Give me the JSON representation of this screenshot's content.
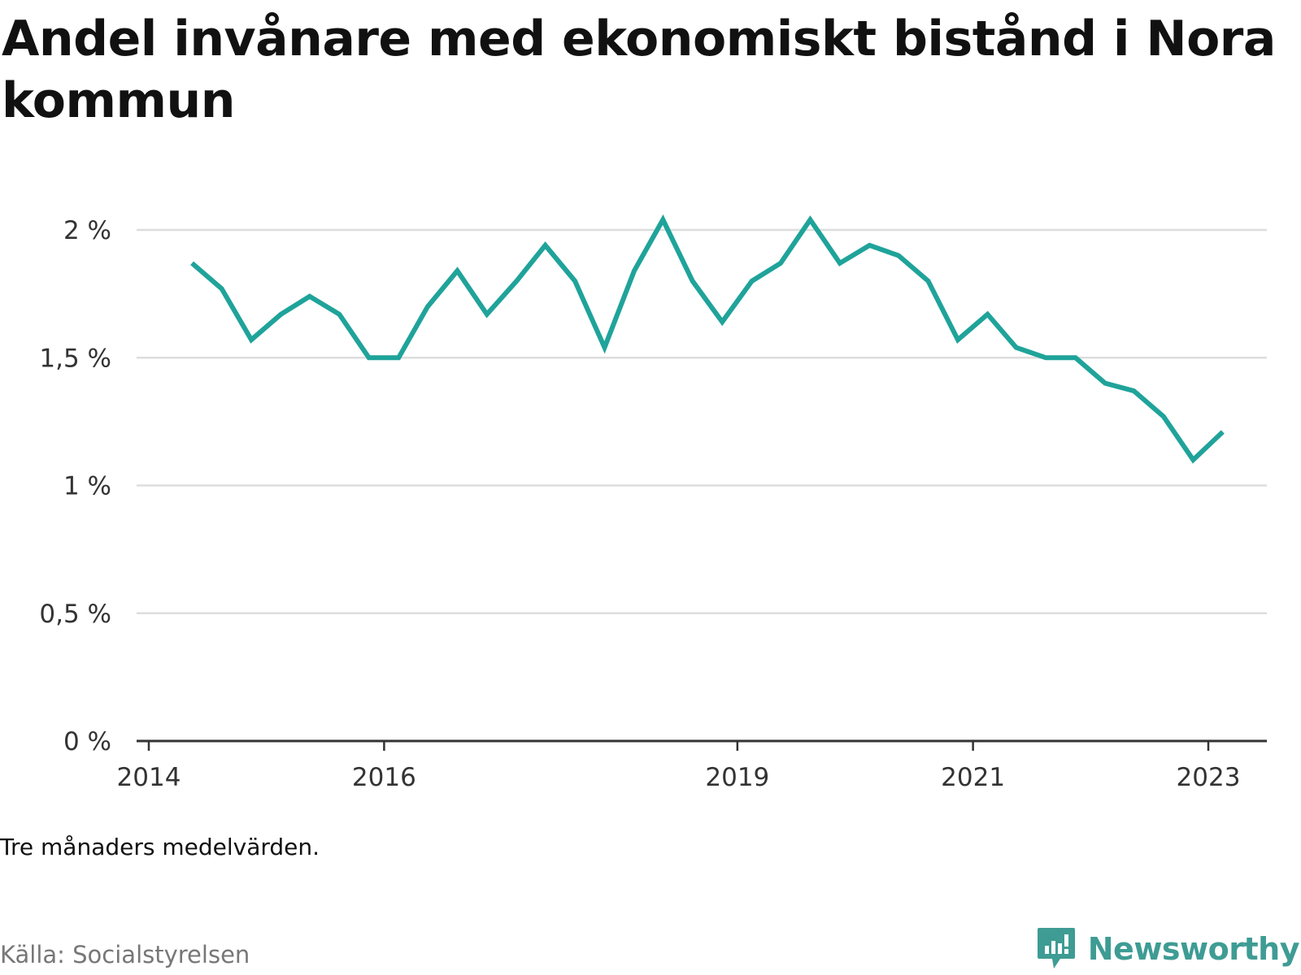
{
  "title": "Andel invånare med ekonomiskt bistånd i Nora kommun",
  "note": "Tre månaders medelvärden.",
  "source": "Källa: Socialstyrelsen",
  "brand": {
    "name": "Newsworthy",
    "icon": "newsworthy-logo-icon",
    "color": "#3e9c94"
  },
  "chart_data": {
    "type": "line",
    "title": "Andel invånare med ekonomiskt bistånd i Nora kommun",
    "xlabel": "",
    "ylabel": "",
    "ylim": [
      0,
      2
    ],
    "y_ticks": [
      0,
      0.5,
      1,
      1.5,
      2
    ],
    "y_tick_labels": [
      "0 %",
      "0,5 %",
      "1 %",
      "1,5 %",
      "2 %"
    ],
    "x_ticks": [
      "2014",
      "2016",
      "2019",
      "2021",
      "2023"
    ],
    "grid": true,
    "line_color": "#1fa39a",
    "x": [
      "2014-05-15",
      "2014-08-15",
      "2014-11-15",
      "2015-02-15",
      "2015-05-15",
      "2015-08-15",
      "2015-11-15",
      "2016-02-15",
      "2016-05-15",
      "2016-08-15",
      "2016-11-15",
      "2017-02-15",
      "2017-05-15",
      "2017-08-15",
      "2017-11-15",
      "2018-02-15",
      "2018-05-15",
      "2018-08-15",
      "2018-11-15",
      "2019-02-15",
      "2019-05-15",
      "2019-08-15",
      "2019-11-15",
      "2020-02-15",
      "2020-05-15",
      "2020-08-15",
      "2020-11-15",
      "2021-02-15",
      "2021-05-15",
      "2021-08-15",
      "2021-11-15",
      "2022-02-15",
      "2022-05-15",
      "2022-08-15",
      "2022-11-15",
      "2023-02-15"
    ],
    "series": [
      {
        "values": [
          1.87,
          1.77,
          1.57,
          1.67,
          1.74,
          1.67,
          1.5,
          1.5,
          1.7,
          1.84,
          1.67,
          1.8,
          1.94,
          1.8,
          1.54,
          1.84,
          2.04,
          1.8,
          1.64,
          1.8,
          1.87,
          2.04,
          1.87,
          1.94,
          1.9,
          1.8,
          1.57,
          1.67,
          1.54,
          1.5,
          1.5,
          1.4,
          1.37,
          1.27,
          1.1,
          1.21
        ]
      }
    ]
  }
}
